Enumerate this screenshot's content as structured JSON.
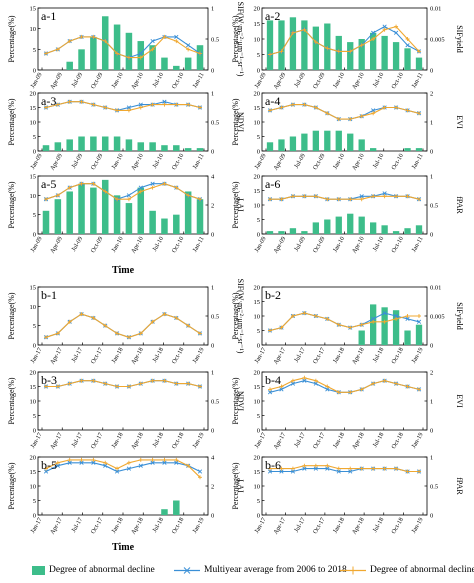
{
  "colors": {
    "bar": "#3dbd8a",
    "multiyear": "#3a8fd6",
    "decline": "#f0a830"
  },
  "legend": {
    "bar": "Degree of abnormal decline",
    "multiyear": "Multiyear average from 2006 to 2018",
    "decline": "Degree of abnormal decline"
  },
  "common": {
    "ylabel": "Percentage(%)",
    "xlabel": "Time"
  },
  "chart_data": [
    {
      "id": "a-1",
      "type": "line+bar",
      "label": "a-1",
      "x": [
        "Jan-09",
        "Apr-09",
        "Jul-09",
        "Oct-09",
        "Jan-10",
        "Apr-10",
        "Jul-10",
        "Oct-10",
        "Jan-11"
      ],
      "ylim": [
        0,
        15
      ],
      "yticks": [
        "0",
        "5",
        "10",
        "15"
      ],
      "y2label": "SIF(W·m⁻²·μm⁻¹·sr⁻¹)",
      "y2lim": [
        0,
        1
      ],
      "y2ticks": [
        "0",
        "0.5",
        "1"
      ],
      "bars": [
        0,
        0,
        2,
        5,
        8,
        13,
        11,
        9,
        7,
        6,
        3,
        1,
        3,
        6
      ],
      "multiyear": [
        4,
        5,
        7,
        8,
        8,
        7,
        4,
        3,
        4,
        7,
        8,
        8,
        6,
        4
      ],
      "decline": [
        4,
        5,
        7,
        8,
        8,
        7,
        4,
        3,
        3,
        5,
        8,
        7,
        5,
        4
      ]
    },
    {
      "id": "a-2",
      "type": "line+bar",
      "label": "a-2",
      "x": [
        "Jan-09",
        "Apr-09",
        "Jul-09",
        "Oct-09",
        "Jan-10",
        "Apr-10",
        "Jul-10",
        "Oct-10",
        "Jan-11"
      ],
      "ylim": [
        0,
        20
      ],
      "yticks": [
        "0",
        "5",
        "10",
        "15",
        "20"
      ],
      "y2label": "SIFyield",
      "y2lim": [
        0,
        0.01
      ],
      "y2ticks": [
        "0",
        "0.005",
        "0.01"
      ],
      "bars": [
        16,
        16,
        17,
        16,
        14,
        15,
        11,
        9,
        10,
        12,
        11,
        9,
        7,
        4
      ],
      "multiyear": [
        5,
        6,
        12,
        13,
        9,
        7,
        6,
        6,
        8,
        12,
        14,
        12,
        8,
        6
      ],
      "decline": [
        5,
        6,
        12,
        13,
        9,
        7,
        6,
        6,
        8,
        10,
        13,
        14,
        10,
        6
      ]
    },
    {
      "id": "a-3",
      "type": "line+bar",
      "label": "a-3",
      "x": [
        "Jan-09",
        "Apr-09",
        "Jul-09",
        "Oct-09",
        "Jan-10",
        "Apr-10",
        "Jul-10",
        "Oct-10",
        "Jan-11"
      ],
      "ylim": [
        0,
        20
      ],
      "yticks": [
        "0",
        "5",
        "10",
        "15",
        "20"
      ],
      "y2label": "NDVI",
      "y2lim": [
        0,
        1
      ],
      "y2ticks": [
        "0",
        "0.5",
        "1"
      ],
      "bars": [
        2,
        3,
        4,
        5,
        5,
        5,
        5,
        4,
        3,
        3,
        2,
        2,
        1,
        1
      ],
      "multiyear": [
        15,
        16,
        17,
        17,
        16,
        15,
        14,
        15,
        16,
        16,
        17,
        16,
        16,
        15
      ],
      "decline": [
        15,
        16,
        17,
        17,
        16,
        15,
        14,
        14,
        15,
        16,
        16,
        16,
        16,
        15
      ]
    },
    {
      "id": "a-4",
      "type": "line+bar",
      "label": "a-4",
      "x": [
        "Jan-09",
        "Apr-09",
        "Jul-09",
        "Oct-09",
        "Jan-10",
        "Apr-10",
        "Jul-10",
        "Oct-10",
        "Jan-11"
      ],
      "ylim": [
        0,
        20
      ],
      "yticks": [
        "0",
        "5",
        "10",
        "15",
        "20"
      ],
      "y2label": "EVI",
      "y2lim": [
        0,
        2
      ],
      "y2ticks": [
        "0",
        "1",
        "2"
      ],
      "bars": [
        3,
        4,
        5,
        6,
        7,
        7,
        7,
        6,
        4,
        1,
        0,
        0,
        1,
        1
      ],
      "multiyear": [
        14,
        15,
        16,
        16,
        15,
        13,
        11,
        11,
        12,
        14,
        15,
        15,
        14,
        13
      ],
      "decline": [
        14,
        15,
        16,
        16,
        15,
        13,
        11,
        11,
        12,
        13,
        15,
        15,
        14,
        13
      ]
    },
    {
      "id": "a-5",
      "type": "line+bar",
      "label": "a-5",
      "x": [
        "Jan-09",
        "Apr-09",
        "Jul-09",
        "Oct-09",
        "Jan-10",
        "Apr-10",
        "Jul-10",
        "Oct-10",
        "Jan-11"
      ],
      "ylim": [
        0,
        15
      ],
      "yticks": [
        "0",
        "5",
        "10",
        "15"
      ],
      "y2label": "LAI",
      "y2lim": [
        0,
        4
      ],
      "y2ticks": [
        "0",
        "2",
        "4"
      ],
      "bars": [
        6,
        9,
        11,
        13,
        12,
        14,
        10,
        8,
        12,
        6,
        4,
        5,
        11,
        9
      ],
      "multiyear": [
        9,
        10,
        12,
        13,
        13,
        11,
        9,
        10,
        12,
        13,
        13,
        12,
        10,
        9
      ],
      "decline": [
        9,
        10,
        12,
        13,
        13,
        11,
        9,
        9,
        11,
        12,
        13,
        12,
        10,
        9
      ]
    },
    {
      "id": "a-6",
      "type": "line+bar",
      "label": "a-6",
      "x": [
        "Jan-09",
        "Apr-09",
        "Jul-09",
        "Oct-09",
        "Jan-10",
        "Apr-10",
        "Jul-10",
        "Oct-10",
        "Jan-11"
      ],
      "ylim": [
        0,
        20
      ],
      "yticks": [
        "0",
        "5",
        "10",
        "15",
        "20"
      ],
      "y2label": "fPAR",
      "y2lim": [
        0,
        1
      ],
      "y2ticks": [
        "0",
        "0.5",
        "1"
      ],
      "bars": [
        1,
        1,
        2,
        1,
        4,
        5,
        6,
        7,
        6,
        4,
        3,
        1,
        2,
        3
      ],
      "multiyear": [
        12,
        12,
        13,
        13,
        13,
        12,
        12,
        12,
        13,
        13,
        14,
        13,
        13,
        12
      ],
      "decline": [
        12,
        12,
        13,
        13,
        13,
        12,
        12,
        12,
        12,
        13,
        13,
        13,
        13,
        12
      ]
    },
    {
      "id": "b-1",
      "type": "line+bar",
      "label": "b-1",
      "x": [
        "Jan-17",
        "Apr-17",
        "Jul-17",
        "Oct-17",
        "Jan-18",
        "Apr-18",
        "Jul-18",
        "Oct-18",
        "Jan-19"
      ],
      "ylim": [
        0,
        15
      ],
      "yticks": [
        "0",
        "5",
        "10",
        "15"
      ],
      "y2label": "SIF(W·m⁻²·μm⁻¹·sr⁻¹)",
      "y2lim": [
        0,
        1
      ],
      "y2ticks": [
        "0",
        "0.5",
        "1"
      ],
      "bars": [
        0,
        0,
        0,
        0,
        0,
        0,
        0,
        0,
        0,
        0,
        0,
        0,
        0,
        0
      ],
      "multiyear": [
        2,
        3,
        6,
        8,
        7,
        5,
        3,
        2,
        3,
        6,
        8,
        7,
        5,
        3
      ],
      "decline": [
        2,
        3,
        6,
        8,
        7,
        5,
        3,
        2,
        3,
        6,
        8,
        7,
        5,
        3
      ]
    },
    {
      "id": "b-2",
      "type": "line+bar",
      "label": "b-2",
      "x": [
        "Jan-17",
        "Apr-17",
        "Jul-17",
        "Oct-17",
        "Jan-18",
        "Apr-18",
        "Jul-18",
        "Oct-18",
        "Jan-19"
      ],
      "ylim": [
        0,
        20
      ],
      "yticks": [
        "0",
        "5",
        "10",
        "15",
        "20"
      ],
      "y2label": "SIFyield",
      "y2lim": [
        0,
        0.01
      ],
      "y2ticks": [
        "0",
        "0.005",
        "0.01"
      ],
      "bars": [
        0,
        0,
        0,
        0,
        0,
        0,
        0,
        0,
        5,
        14,
        13,
        12,
        5,
        7
      ],
      "multiyear": [
        5,
        6,
        10,
        11,
        10,
        9,
        7,
        6,
        7,
        9,
        11,
        10,
        9,
        8
      ],
      "decline": [
        5,
        6,
        10,
        11,
        10,
        9,
        7,
        6,
        7,
        8,
        8,
        9,
        10,
        10
      ]
    },
    {
      "id": "b-3",
      "type": "line+bar",
      "label": "b-3",
      "x": [
        "Jan-17",
        "Apr-17",
        "Jul-17",
        "Oct-17",
        "Jan-18",
        "Apr-18",
        "Jul-18",
        "Oct-18",
        "Jan-19"
      ],
      "ylim": [
        0,
        20
      ],
      "yticks": [
        "0",
        "5",
        "10",
        "15",
        "20"
      ],
      "y2label": "NDVI",
      "y2lim": [
        0,
        1
      ],
      "y2ticks": [
        "0",
        "0.5",
        "1"
      ],
      "bars": [
        0,
        0,
        0,
        0,
        0,
        0,
        0,
        0,
        0,
        0,
        0,
        0,
        0,
        0
      ],
      "multiyear": [
        15,
        15,
        16,
        17,
        17,
        16,
        15,
        15,
        16,
        17,
        17,
        16,
        16,
        15
      ],
      "decline": [
        15,
        15,
        16,
        17,
        17,
        16,
        15,
        15,
        16,
        17,
        17,
        16,
        16,
        15
      ]
    },
    {
      "id": "b-4",
      "type": "line+bar",
      "label": "b-4",
      "x": [
        "Jan-17",
        "Apr-17",
        "Jul-17",
        "Oct-17",
        "Jan-18",
        "Apr-18",
        "Jul-18",
        "Oct-18",
        "Jan-19"
      ],
      "ylim": [
        0,
        20
      ],
      "yticks": [
        "0",
        "5",
        "10",
        "15",
        "20"
      ],
      "y2label": "EVI",
      "y2lim": [
        0,
        2
      ],
      "y2ticks": [
        "0",
        "1",
        "2"
      ],
      "bars": [
        0,
        0,
        0,
        0,
        0,
        0,
        0,
        0,
        0,
        0,
        0,
        0,
        0,
        0
      ],
      "multiyear": [
        13,
        14,
        16,
        17,
        16,
        14,
        13,
        13,
        14,
        16,
        17,
        16,
        15,
        14
      ],
      "decline": [
        14,
        15,
        17,
        18,
        17,
        15,
        13,
        13,
        14,
        16,
        17,
        16,
        15,
        14
      ]
    },
    {
      "id": "b-5",
      "type": "line+bar",
      "label": "b-5",
      "x": [
        "Jan-17",
        "Apr-17",
        "Jul-17",
        "Oct-17",
        "Jan-18",
        "Apr-18",
        "Jul-18",
        "Oct-18",
        "Jan-19"
      ],
      "ylim": [
        0,
        20
      ],
      "yticks": [
        "0",
        "5",
        "10",
        "15",
        "20"
      ],
      "y2label": "LAI",
      "y2lim": [
        0,
        4
      ],
      "y2ticks": [
        "0",
        "2",
        "4"
      ],
      "bars": [
        0,
        0,
        0,
        0,
        0,
        0,
        0,
        0,
        0,
        0,
        2,
        5,
        0,
        0
      ],
      "multiyear": [
        15,
        17,
        18,
        18,
        18,
        17,
        15,
        16,
        17,
        18,
        18,
        18,
        17,
        15
      ],
      "decline": [
        16,
        18,
        19,
        19,
        19,
        18,
        16,
        18,
        19,
        19,
        19,
        19,
        17,
        13
      ]
    },
    {
      "id": "b-6",
      "type": "line+bar",
      "label": "b-6",
      "x": [
        "Jan-17",
        "Apr-17",
        "Jul-17",
        "Oct-17",
        "Jan-18",
        "Apr-18",
        "Jul-18",
        "Oct-18",
        "Jan-19"
      ],
      "ylim": [
        0,
        20
      ],
      "yticks": [
        "0",
        "5",
        "10",
        "15",
        "20"
      ],
      "y2label": "fPAR",
      "y2lim": [
        0,
        1
      ],
      "y2ticks": [
        "0",
        "0.5",
        "1"
      ],
      "bars": [
        0,
        0,
        0,
        0,
        0,
        0,
        0,
        0,
        0,
        0,
        0,
        0,
        0,
        0
      ],
      "multiyear": [
        15,
        15,
        15,
        16,
        16,
        16,
        15,
        15,
        16,
        16,
        16,
        16,
        15,
        15
      ],
      "decline": [
        16,
        16,
        16,
        17,
        17,
        17,
        16,
        16,
        16,
        16,
        16,
        16,
        15,
        15
      ]
    }
  ]
}
